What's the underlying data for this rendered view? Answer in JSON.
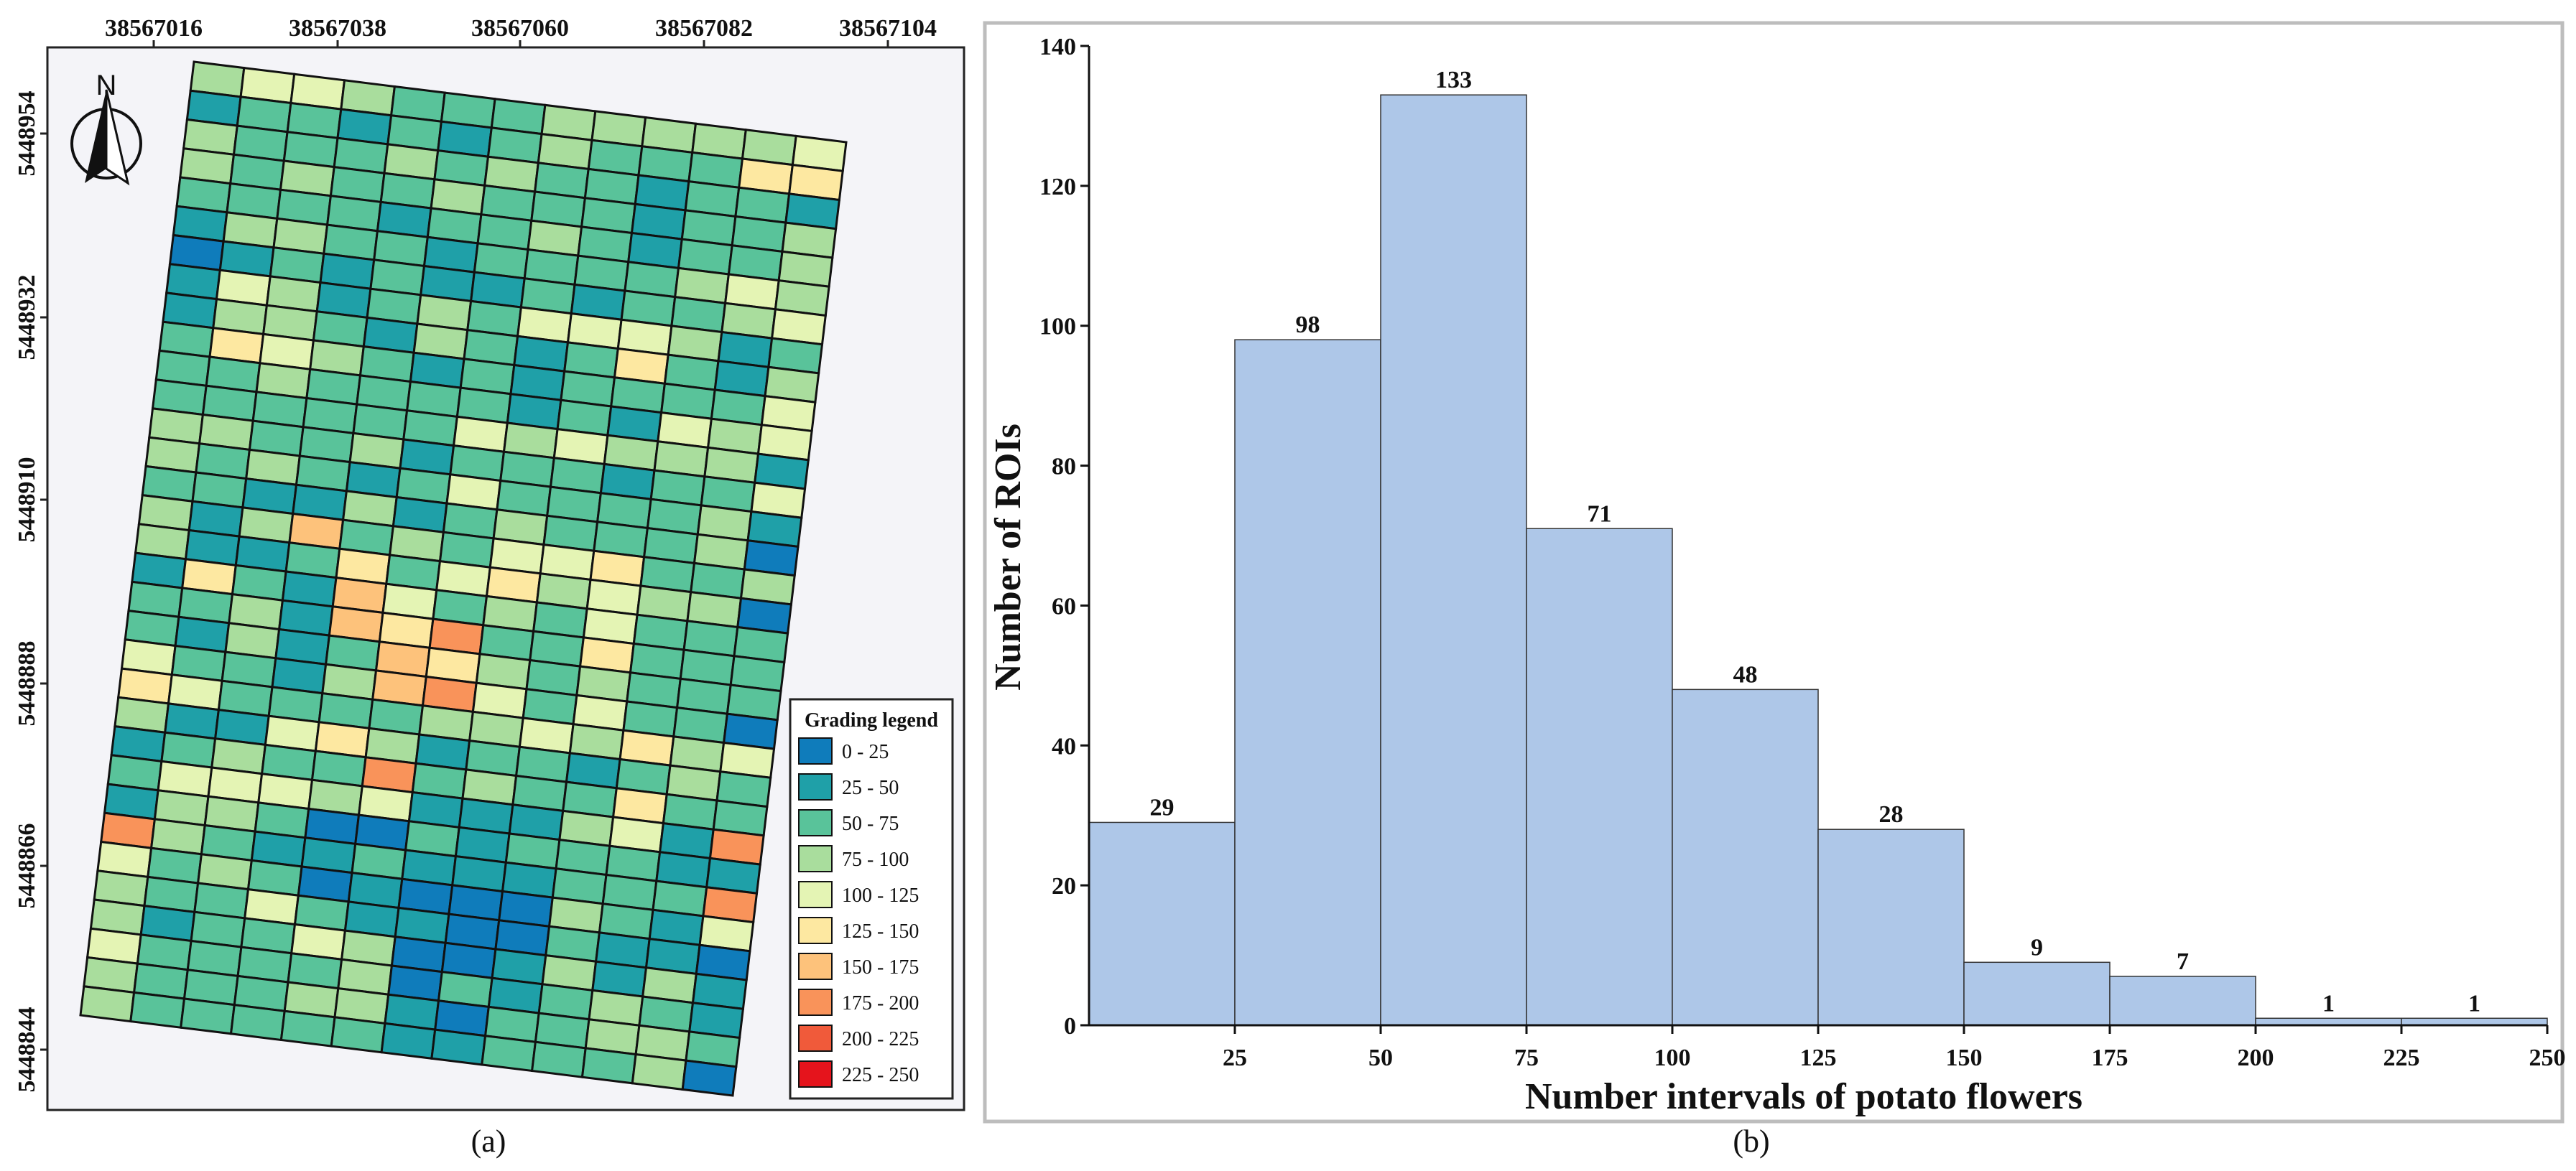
{
  "panel_a": {
    "caption": "(a)",
    "x_ticks": [
      "38567016",
      "38567038",
      "38567060",
      "38567082",
      "38567104"
    ],
    "y_ticks": [
      "5448954",
      "5448932",
      "5448910",
      "5448888",
      "5448866",
      "5448844"
    ],
    "north_label": "N",
    "legend": {
      "title": "Grading legend",
      "items": [
        {
          "label": "0 - 25",
          "color": "#0f7cbb"
        },
        {
          "label": "25 - 50",
          "color": "#1fa0a8"
        },
        {
          "label": "50 - 75",
          "color": "#59c39a"
        },
        {
          "label": "75 - 100",
          "color": "#a9dd9d"
        },
        {
          "label": "100 - 125",
          "color": "#e4f4b4"
        },
        {
          "label": "125 - 150",
          "color": "#fde8a1"
        },
        {
          "label": "150 - 175",
          "color": "#fdc27b"
        },
        {
          "label": "175 - 200",
          "color": "#f9935a"
        },
        {
          "label": "200 - 225",
          "color": "#f05a3a"
        },
        {
          "label": "225 - 250",
          "color": "#e5141c"
        }
      ]
    },
    "grid_rows": [
      "3443222333334",
      "1221212322255",
      "3222323221221",
      "3232232221223",
      "2222122321223",
      "1332212222343",
      "0121211212234",
      "1431232444312",
      "1332132125213",
      "2543212122224",
      "2232222121434",
      "2222224343331",
      "3322312221224",
      "3232124222231",
      "2211312322230",
      "3136232445223",
      "3112524534330",
      "1521642324222",
      "2231657225222",
      "2131265323222",
      "4221367424220",
      "5422223343534",
      "3114531221232",
      "1232272322522",
      "2444341113417",
      "1332002122211",
      "7321121112227",
      "4232010003214",
      "3224211002110",
      "3122430013131",
      "4222230212321",
      "3222331022332",
      "3222221122230"
    ]
  },
  "panel_b": {
    "caption": "(b)"
  },
  "chart_data": {
    "type": "bar",
    "title": "",
    "xlabel": "Number intervals of potato flowers",
    "ylabel": "Number of ROIs",
    "bin_edges": [
      0,
      25,
      50,
      75,
      100,
      125,
      150,
      175,
      200,
      225,
      250
    ],
    "categories": [
      "0-25",
      "25-50",
      "50-75",
      "75-100",
      "100-125",
      "125-150",
      "150-175",
      "175-200",
      "200-225",
      "225-250"
    ],
    "values": [
      29,
      98,
      133,
      71,
      48,
      28,
      9,
      7,
      1,
      1
    ],
    "data_labels": [
      "29",
      "98",
      "133",
      "71",
      "48",
      "28",
      "9",
      "7",
      "1",
      "1"
    ],
    "x_tick_labels": [
      "25",
      "50",
      "75",
      "100",
      "125",
      "150",
      "175",
      "200",
      "225",
      "250"
    ],
    "y_tick_labels": [
      "0",
      "20",
      "40",
      "60",
      "80",
      "100",
      "120",
      "140"
    ],
    "ylim": [
      0,
      140
    ],
    "xlim": [
      0,
      250
    ],
    "bar_color": "#aec7e8",
    "grid": false,
    "legend": "none"
  }
}
